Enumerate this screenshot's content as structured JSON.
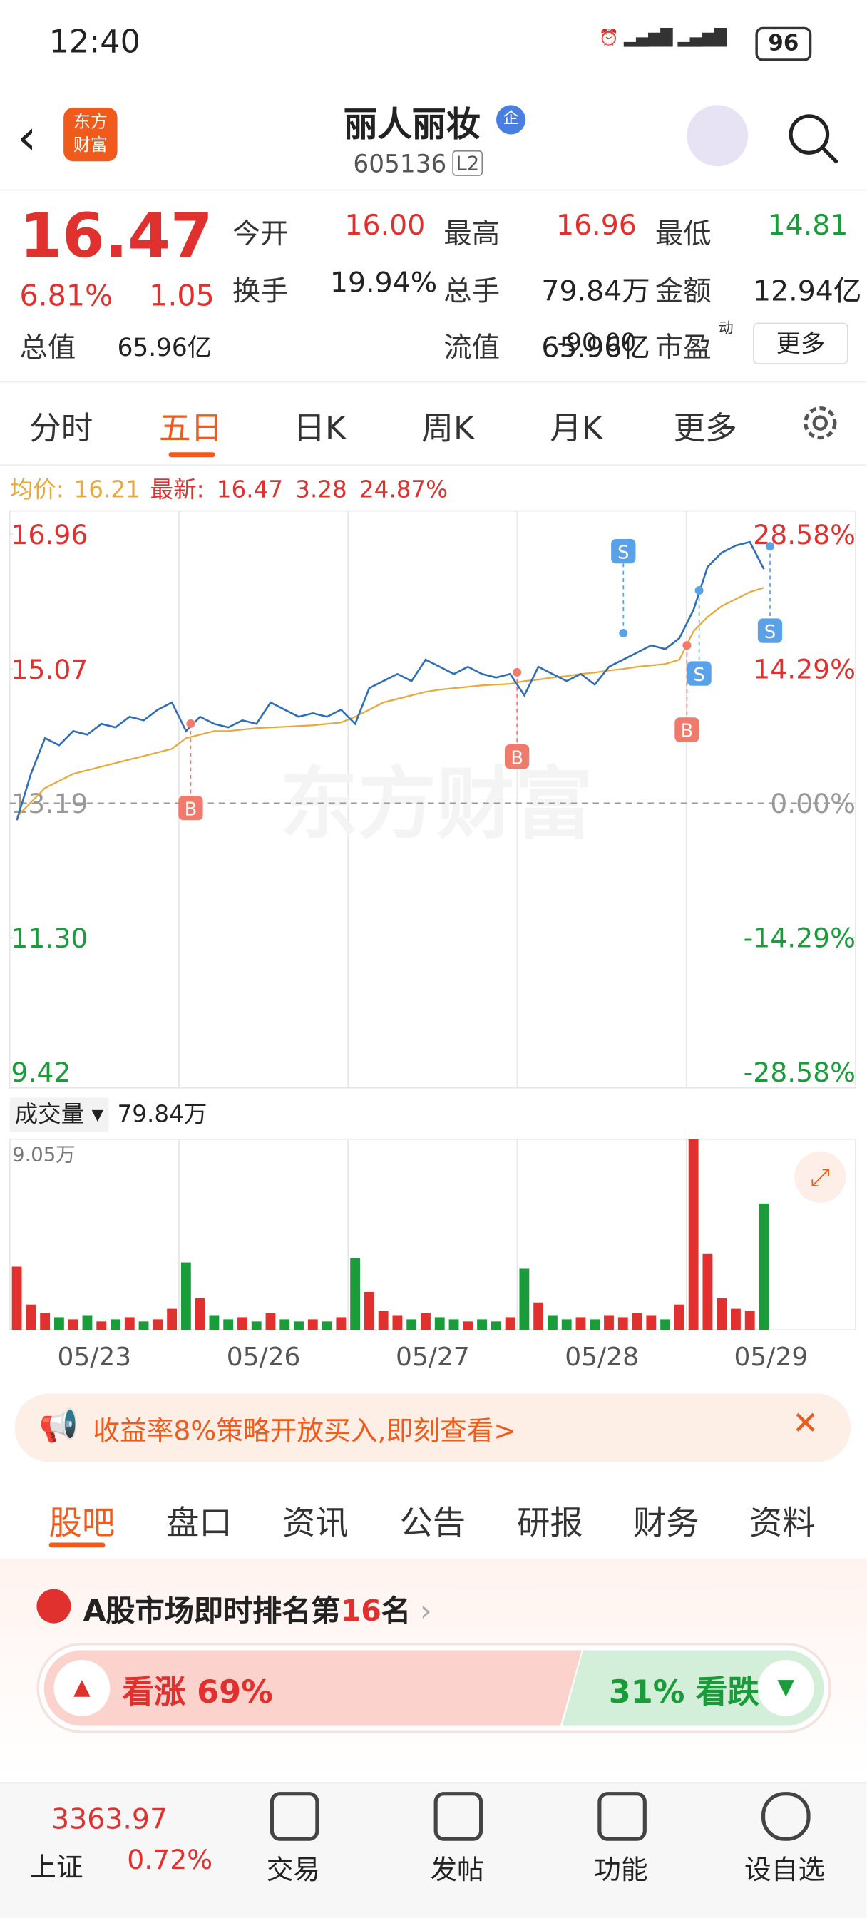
{
  "status_bar": {
    "time": "12:40",
    "battery": "96"
  },
  "header": {
    "logo": [
      "东方",
      "财富"
    ],
    "name": "丽人丽妆",
    "badge": "企",
    "code": "605136",
    "level": "L2"
  },
  "quote": {
    "price": "16.47",
    "change_pct": "6.81%",
    "change": "1.05",
    "more": "更多",
    "fields": [
      {
        "label": "今开",
        "value": "16.00"
      },
      {
        "label": "最高",
        "value": "16.96"
      },
      {
        "label": "最低",
        "value": "14.81"
      },
      {
        "label": "换手",
        "value": "19.94%"
      },
      {
        "label": "总手",
        "value": "79.84万"
      },
      {
        "label": "金额",
        "value": "12.94亿"
      },
      {
        "label": "总值",
        "value": "65.96亿"
      },
      {
        "label": "流值",
        "value": "65.96亿"
      },
      {
        "label": "市盈",
        "sup": "动",
        "value": "-90.00"
      }
    ]
  },
  "tabs": [
    "分时",
    "五日",
    "日K",
    "周K",
    "月K",
    "更多"
  ],
  "legend": {
    "avg_label": "均价:",
    "avg": "16.21",
    "latest_label": "最新:",
    "latest": "16.47",
    "change": "3.28",
    "pct": "24.87%"
  },
  "chart": {
    "ylim": [
      9.42,
      16.96
    ],
    "yticks": [
      16.96,
      15.07,
      13.19,
      {
        "value": 11.3,
        "label": "11.30"
      },
      9.42
    ],
    "y2lim": [
      -28.58,
      28.58
    ],
    "y2ticks": [
      {
        "value": 28.58,
        "label": "28.58%"
      },
      {
        "value": 14.29,
        "label": "14.29%"
      },
      {
        "value": 0,
        "label": "0.00%"
      },
      {
        "value": -14.29,
        "label": "-14.29%"
      },
      {
        "value": -28.58,
        "label": "-28.58%"
      }
    ],
    "watermark": "东方财富",
    "x_labels": [
      "05/23",
      "05/26",
      "05/27",
      "05/28",
      "05/29"
    ],
    "trade_marks": [
      "B",
      "B",
      "B",
      "S",
      "S",
      "S"
    ],
    "price": [
      12.95,
      13.6,
      14.1,
      14.0,
      14.2,
      14.15,
      14.3,
      14.25,
      14.4,
      14.35,
      14.5,
      14.6,
      14.2,
      14.4,
      14.3,
      14.25,
      14.35,
      14.3,
      14.6,
      14.5,
      14.4,
      14.45,
      14.4,
      14.5,
      14.3,
      14.8,
      14.9,
      15.0,
      14.9,
      15.2,
      15.1,
      15.0,
      15.1,
      15.0,
      14.95,
      15.0,
      14.7,
      15.1,
      15.0,
      14.9,
      15.0,
      14.85,
      15.1,
      15.2,
      15.3,
      15.4,
      15.35,
      15.5,
      15.9,
      16.5,
      16.7,
      16.8,
      16.85,
      16.47
    ],
    "avg": [
      13.0,
      13.2,
      13.4,
      13.5,
      13.6,
      13.65,
      13.7,
      13.75,
      13.8,
      13.85,
      13.9,
      13.95,
      14.1,
      14.15,
      14.2,
      14.2,
      14.22,
      14.24,
      14.25,
      14.26,
      14.27,
      14.28,
      14.3,
      14.32,
      14.4,
      14.5,
      14.6,
      14.65,
      14.7,
      14.75,
      14.78,
      14.8,
      14.82,
      14.84,
      14.85,
      14.86,
      14.9,
      14.92,
      14.95,
      14.97,
      15.0,
      15.02,
      15.05,
      15.07,
      15.1,
      15.12,
      15.14,
      15.2,
      15.6,
      15.8,
      15.95,
      16.05,
      16.15,
      16.21
    ]
  },
  "volume": {
    "label": "成交量",
    "total": "79.84万",
    "ylim": [
      0,
      9.05
    ],
    "yticks": [
      {
        "value": 9.05,
        "label": "9.05万"
      }
    ],
    "values": [
      3.0,
      1.2,
      0.8,
      0.6,
      0.5,
      0.7,
      0.4,
      0.5,
      0.6,
      0.4,
      0.5,
      1.0,
      3.2,
      1.5,
      0.7,
      0.5,
      0.6,
      0.4,
      0.8,
      0.5,
      0.4,
      0.5,
      0.4,
      0.6,
      3.4,
      1.8,
      0.9,
      0.7,
      0.5,
      0.8,
      0.6,
      0.5,
      0.4,
      0.5,
      0.4,
      0.6,
      2.9,
      1.3,
      0.7,
      0.5,
      0.6,
      0.5,
      0.7,
      0.6,
      0.8,
      0.7,
      0.5,
      1.2,
      9.05,
      3.6,
      1.5,
      1.0,
      0.9,
      6.0
    ]
  },
  "banner": {
    "text": "收益率8%策略开放买入,即刻查看>"
  },
  "sub_tabs": [
    "股吧",
    "盘口",
    "资讯",
    "公告",
    "研报",
    "财务",
    "资料"
  ],
  "ranking": {
    "prefix": "A股市场即时排名第",
    "rank": "16",
    "suffix": "名"
  },
  "sentiment": {
    "up": "看涨 69%",
    "down": "31% 看跌"
  },
  "bottom_nav": {
    "index_value": "3363.97",
    "index_name": "上证",
    "index_pct": "0.72%",
    "items": [
      "交易",
      "发帖",
      "功能",
      "设自选"
    ]
  }
}
